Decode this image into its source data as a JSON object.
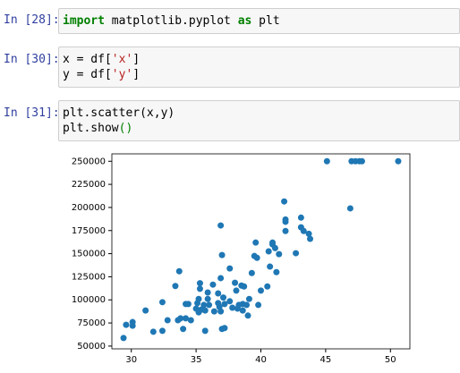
{
  "cells": [
    {
      "prompt": "In [28]:",
      "lines": [
        [
          "import",
          " matplotlib.pyplot ",
          "as",
          " plt"
        ]
      ]
    },
    {
      "prompt": "In [30]:",
      "lines": [
        [
          "x = df[",
          "'x'",
          "]"
        ],
        [
          "y = df[",
          "'y'",
          "]"
        ]
      ]
    },
    {
      "prompt": "In [31]:",
      "lines": [
        [
          "plt.scatter(x,y)"
        ],
        [
          "plt.show",
          "()"
        ]
      ]
    }
  ],
  "chart_data": {
    "type": "scatter",
    "color": "#1f77b4",
    "x": [
      29.4,
      29.6,
      30.1,
      30.1,
      31.1,
      31.7,
      32.4,
      32.4,
      32.8,
      33.4,
      33.7,
      33.6,
      33.8,
      34.0,
      34.2,
      34.2,
      34.4,
      34.6,
      35.0,
      35.1,
      35.2,
      35.2,
      35.3,
      35.3,
      35.4,
      35.6,
      35.7,
      35.7,
      35.9,
      35.9,
      36.0,
      36.3,
      36.4,
      36.7,
      36.7,
      36.9,
      36.9,
      36.9,
      37.0,
      37.0,
      37.1,
      36.8,
      37.2,
      37.2,
      37.6,
      37.6,
      37.8,
      38.0,
      38.1,
      38.2,
      38.3,
      38.5,
      38.6,
      38.7,
      38.6,
      38.9,
      39.0,
      39.1,
      39.3,
      39.5,
      39.6,
      39.7,
      39.8,
      40.0,
      40.5,
      40.6,
      40.7,
      40.9,
      40.9,
      41.1,
      41.2,
      41.4,
      41.8,
      41.9,
      41.9,
      41.9,
      42.7,
      43.1,
      43.1,
      43.3,
      43.7,
      43.8,
      45.1,
      46.9,
      47.0,
      47.3,
      47.6,
      47.8,
      50.6
    ],
    "y": [
      58700,
      73000,
      76000,
      72000,
      88500,
      65500,
      66500,
      97500,
      78000,
      115000,
      131000,
      78000,
      80000,
      68500,
      95500,
      80000,
      95500,
      78000,
      90500,
      96500,
      86500,
      101000,
      112000,
      118000,
      89500,
      94500,
      66500,
      88500,
      101000,
      108000,
      94500,
      116500,
      87500,
      107000,
      96500,
      87500,
      123500,
      180500,
      148500,
      68500,
      102500,
      92500,
      69500,
      95500,
      98500,
      134000,
      91500,
      118500,
      110000,
      90500,
      94500,
      115500,
      88500,
      114500,
      95500,
      94500,
      83000,
      101000,
      129000,
      147500,
      162000,
      145500,
      94500,
      110000,
      114500,
      152500,
      136000,
      162000,
      160000,
      156000,
      130000,
      149500,
      206500,
      184500,
      187000,
      174500,
      150500,
      189000,
      178500,
      174500,
      171500,
      166000,
      250000,
      199000,
      250000,
      250000,
      250000,
      250000,
      250000
    ],
    "xlim": [
      28.5,
      51.5
    ],
    "xticks": [
      30,
      35,
      40,
      45,
      50
    ],
    "ylim": [
      47000,
      258000
    ],
    "yticks": [
      50000,
      75000,
      100000,
      125000,
      150000,
      175000,
      200000,
      225000,
      250000
    ]
  }
}
